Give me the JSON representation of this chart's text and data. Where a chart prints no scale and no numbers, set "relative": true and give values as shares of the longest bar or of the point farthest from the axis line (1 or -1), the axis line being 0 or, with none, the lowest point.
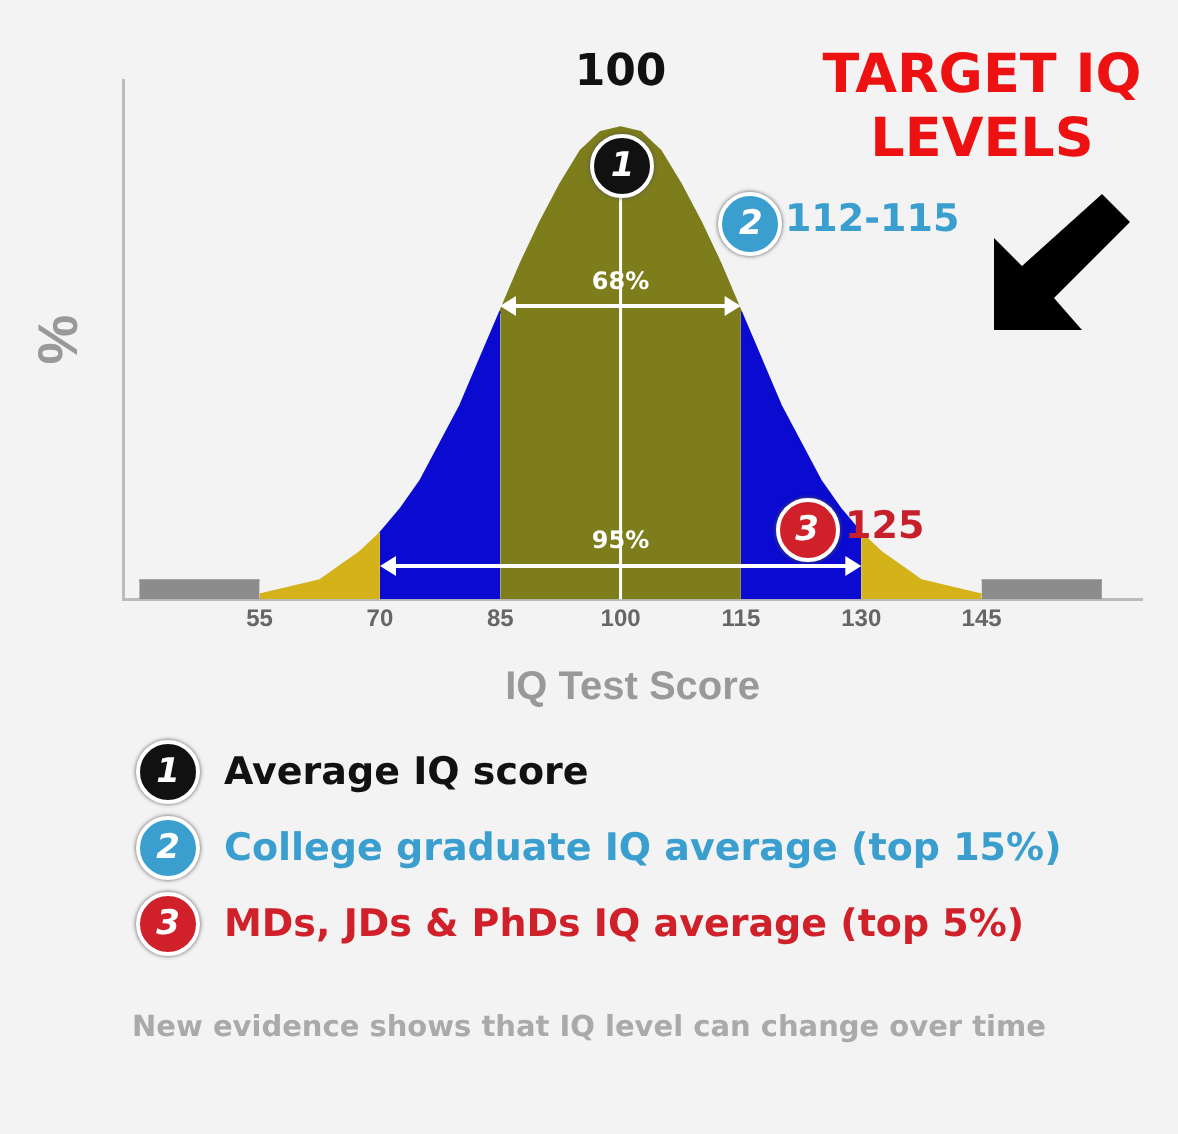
{
  "chart_data": {
    "type": "area",
    "relative": true,
    "xlabel": "IQ Test Score",
    "ylabel": "%",
    "xlim": [
      38,
      165
    ],
    "xticks": [
      55,
      70,
      85,
      100,
      115,
      130,
      145
    ],
    "grid": false,
    "legend": false,
    "series": [
      {
        "color": "#8c8c8c",
        "x": [
          40,
          55
        ],
        "values": [
          0.04,
          0.04
        ]
      },
      {
        "color": "#d4b21a",
        "x": [
          55,
          57.5,
          60,
          62.5,
          65,
          67.5,
          70
        ],
        "values": [
          0.01,
          0.02,
          0.03,
          0.04,
          0.07,
          0.1,
          0.14
        ]
      },
      {
        "color": "#0a0ad0",
        "x": [
          70,
          72.5,
          75,
          77.5,
          80,
          82.5,
          85
        ],
        "values": [
          0.14,
          0.19,
          0.25,
          0.33,
          0.41,
          0.51,
          0.61
        ]
      },
      {
        "color": "#7d7d1c",
        "x": [
          85,
          87.5,
          90,
          92.5,
          95,
          97.5,
          100,
          102.5,
          105,
          107.5,
          110,
          112.5,
          115
        ],
        "values": [
          0.61,
          0.71,
          0.8,
          0.88,
          0.95,
          0.99,
          1,
          0.99,
          0.95,
          0.88,
          0.8,
          0.71,
          0.61
        ]
      },
      {
        "color": "#0a0ad0",
        "x": [
          115,
          117.5,
          120,
          122.5,
          125,
          127.5,
          130
        ],
        "values": [
          0.61,
          0.51,
          0.41,
          0.33,
          0.25,
          0.19,
          0.14
        ]
      },
      {
        "color": "#d4b21a",
        "x": [
          130,
          132.5,
          135,
          137.5,
          140,
          142.5,
          145
        ],
        "values": [
          0.14,
          0.1,
          0.07,
          0.04,
          0.03,
          0.02,
          0.01
        ]
      },
      {
        "color": "#8c8c8c",
        "x": [
          145,
          160
        ],
        "values": [
          0.04,
          0.04
        ]
      }
    ],
    "ref_lines": [
      {
        "axis": "x",
        "value": 100,
        "color": "#ffffff"
      }
    ],
    "annotations": [
      {
        "text": "100",
        "x": 100,
        "y": 1
      },
      {
        "text": "1",
        "x": 100,
        "y": 0.92
      },
      {
        "text": "2",
        "x": 116,
        "y": 0.8
      },
      "112-115",
      {
        "text": "3",
        "x": 123,
        "y": 0.15
      },
      "125",
      {
        "text": "68%",
        "x": 100,
        "y": 0.62
      },
      {
        "text": "95%",
        "x": 100,
        "y": 0.07
      },
      "TARGET IQ LEVELS",
      "Average IQ score",
      "College graduate IQ average (top 15%)",
      "MDs, JDs & PhDs IQ average (top 5%)",
      "New evidence shows that IQ level can change over time"
    ]
  }
}
